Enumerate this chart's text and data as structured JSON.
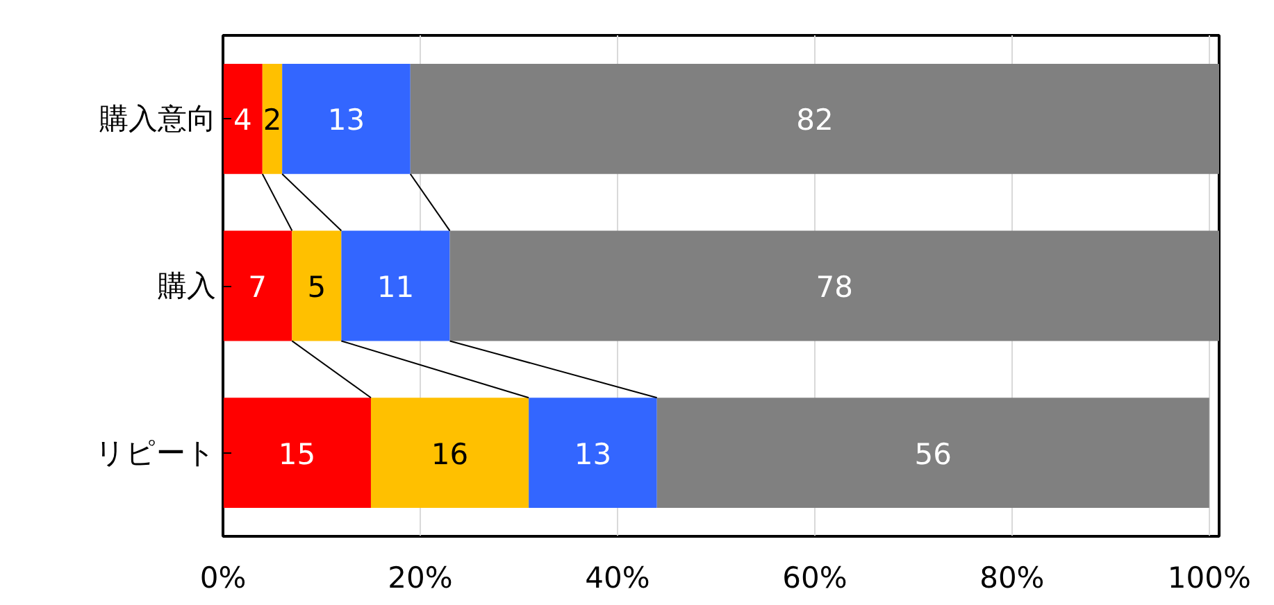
{
  "chart_data": {
    "type": "bar",
    "orientation": "horizontal",
    "stacked": true,
    "data_labels": true,
    "grid": "x",
    "categories": [
      "購入意向",
      "購入",
      "リピート"
    ],
    "series": [
      {
        "color": "#ff0000",
        "values": [
          4,
          7,
          15
        ]
      },
      {
        "color": "#ffc000",
        "values": [
          2,
          5,
          16
        ]
      },
      {
        "color": "#3366ff",
        "values": [
          13,
          11,
          13
        ]
      },
      {
        "color": "#808080",
        "values": [
          82,
          78,
          56
        ]
      }
    ],
    "xlim": [
      0,
      101
    ],
    "xticks": [
      {
        "value": 0,
        "label": "0%"
      },
      {
        "value": 20,
        "label": "20%"
      },
      {
        "value": 40,
        "label": "40%"
      },
      {
        "value": 60,
        "label": "60%"
      },
      {
        "value": 80,
        "label": "80%"
      },
      {
        "value": 100,
        "label": "100%"
      }
    ]
  }
}
